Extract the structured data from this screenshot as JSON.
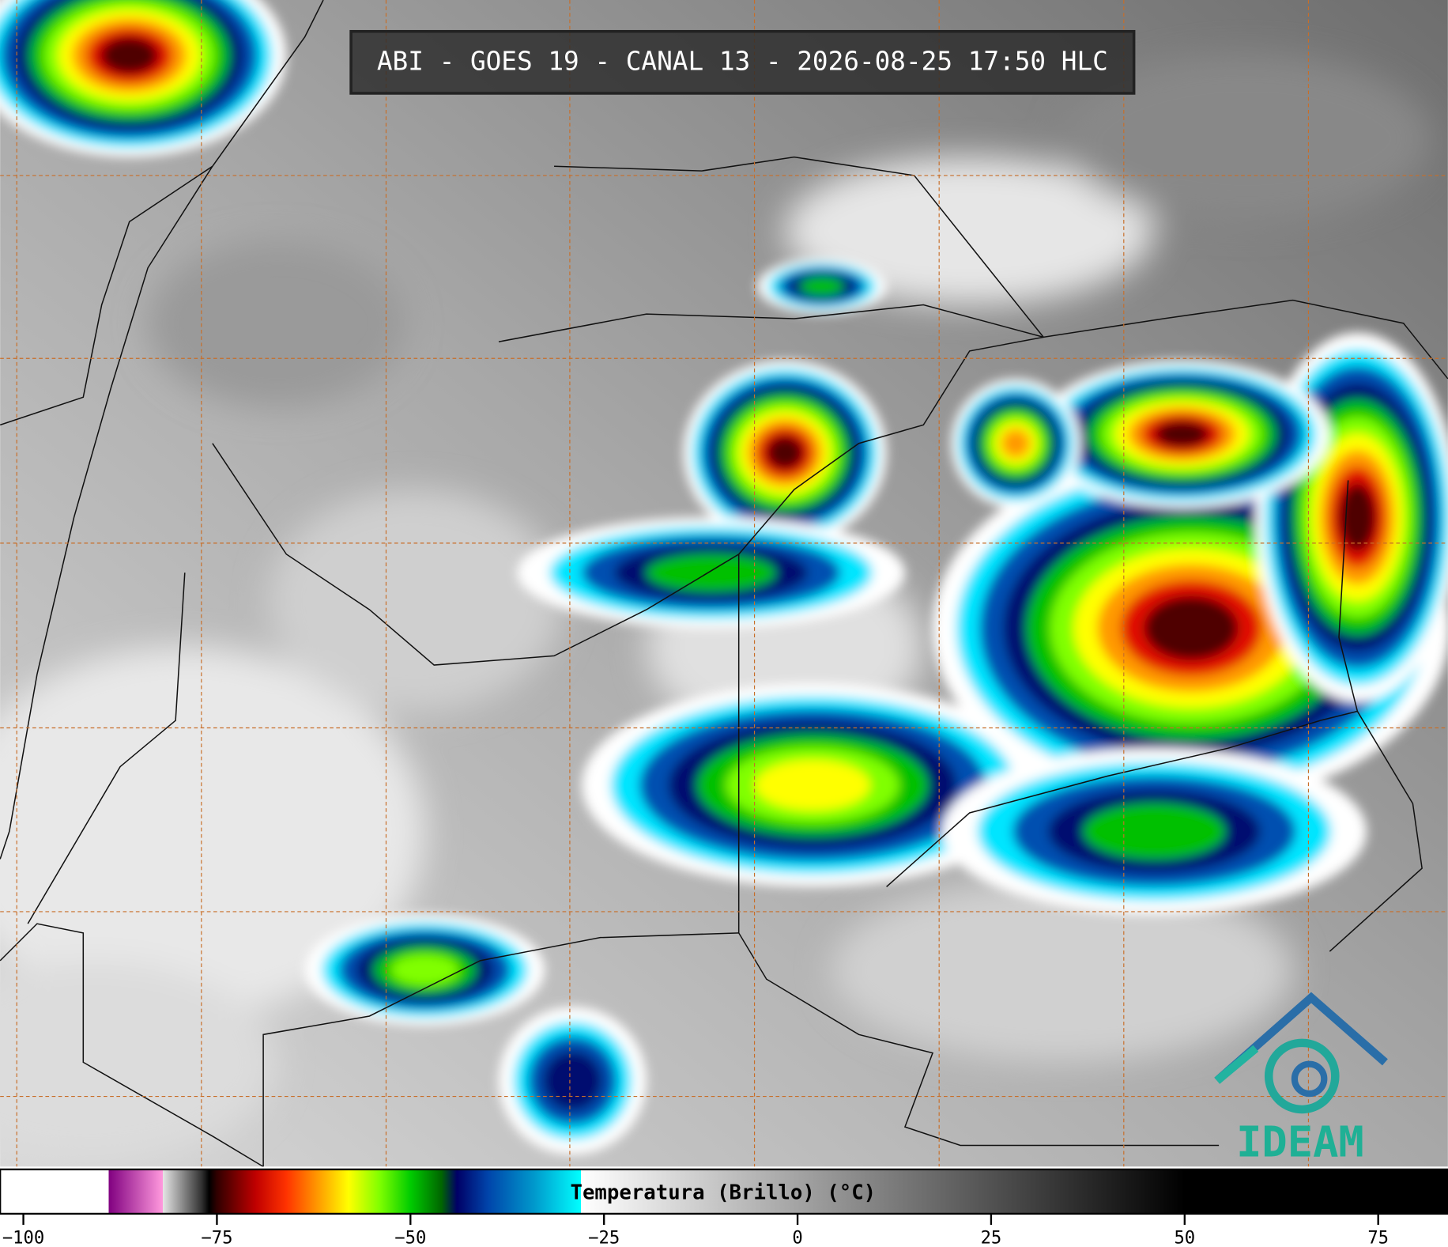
{
  "header": {
    "title": "ABI - GOES 19 - CANAL 13 - 2026-08-25 17:50 HLC"
  },
  "colorbar": {
    "label": "Temperatura (Brillo) (°C)",
    "range": [
      -103,
      84
    ],
    "ticks": [
      {
        "value": -100,
        "label": "−100"
      },
      {
        "value": -75,
        "label": "−75"
      },
      {
        "value": -50,
        "label": "−50"
      },
      {
        "value": -25,
        "label": "−25"
      },
      0,
      25,
      50,
      75
    ],
    "stops": [
      {
        "value": -103,
        "color": "#ffffff"
      },
      {
        "value": -89,
        "color": "#ffffff"
      },
      {
        "value": -89,
        "color": "#800080"
      },
      {
        "value": -82,
        "color": "#ff99dd"
      },
      {
        "value": -82,
        "color": "#e6e6e6"
      },
      {
        "value": -77,
        "color": "#333333"
      },
      {
        "value": -76,
        "color": "#000000"
      },
      {
        "value": -75,
        "color": "#300000"
      },
      {
        "value": -70,
        "color": "#c00000"
      },
      {
        "value": -66,
        "color": "#ff3300"
      },
      {
        "value": -62,
        "color": "#ff9900"
      },
      {
        "value": -58,
        "color": "#ffff00"
      },
      {
        "value": -54,
        "color": "#80ff00"
      },
      {
        "value": -50,
        "color": "#00cc00"
      },
      {
        "value": -46,
        "color": "#006600"
      },
      {
        "value": -44,
        "color": "#000066"
      },
      {
        "value": -40,
        "color": "#0044aa"
      },
      {
        "value": -34,
        "color": "#0099cc"
      },
      {
        "value": -28,
        "color": "#00ffff"
      },
      {
        "value": -28,
        "color": "#ffffff"
      },
      {
        "value": 50,
        "color": "#000000"
      },
      {
        "value": 84,
        "color": "#000000"
      }
    ]
  },
  "logo": {
    "text": "IDEAM"
  }
}
